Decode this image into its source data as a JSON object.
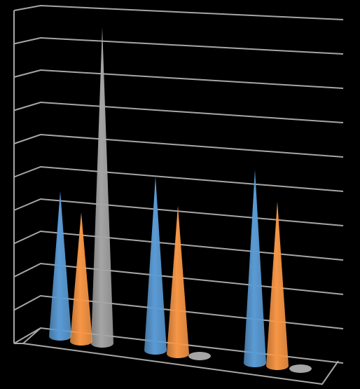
{
  "chart_data": {
    "type": "cone3d",
    "categories": [
      null,
      null,
      null
    ],
    "series": [
      {
        "color": "#5b9bd5",
        "values": [
          4.5,
          5.4,
          6.0
        ]
      },
      {
        "color": "#f79646",
        "values": [
          4.0,
          4.6,
          5.1
        ]
      },
      {
        "color": "#a5a5a5",
        "values": [
          9.8,
          0,
          0
        ]
      }
    ],
    "ylim": [
      0,
      10
    ],
    "yticks": [
      0,
      1,
      2,
      3,
      4,
      5,
      6,
      7,
      8,
      9,
      10
    ],
    "grid": true
  }
}
